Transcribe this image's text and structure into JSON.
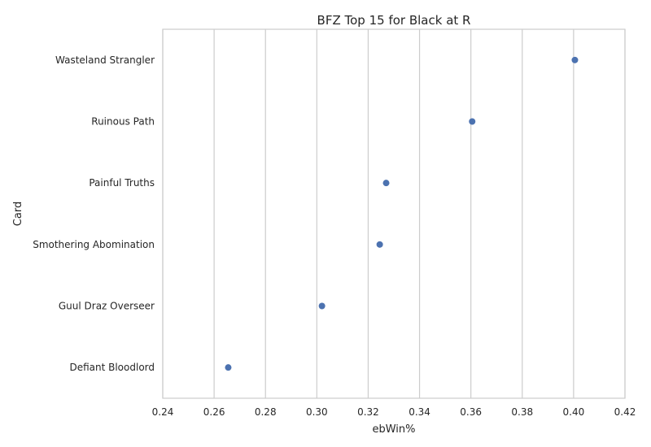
{
  "chart_data": {
    "type": "scatter",
    "title": "BFZ Top 15 for Black at R",
    "xlabel": "ebWin%",
    "ylabel": "Card",
    "xlim": [
      0.24,
      0.42
    ],
    "xticks": [
      "0.24",
      "0.26",
      "0.28",
      "0.30",
      "0.32",
      "0.34",
      "0.36",
      "0.38",
      "0.40",
      "0.42"
    ],
    "grid": true,
    "color": "#4c72b0",
    "categories": [
      "Wasteland Strangler",
      "Ruinous Path",
      "Painful Truths",
      "Smothering Abomination",
      "Guul Draz Overseer",
      "Defiant Bloodlord"
    ],
    "values": [
      0.4005,
      0.3605,
      0.327,
      0.3245,
      0.302,
      0.2655
    ]
  }
}
